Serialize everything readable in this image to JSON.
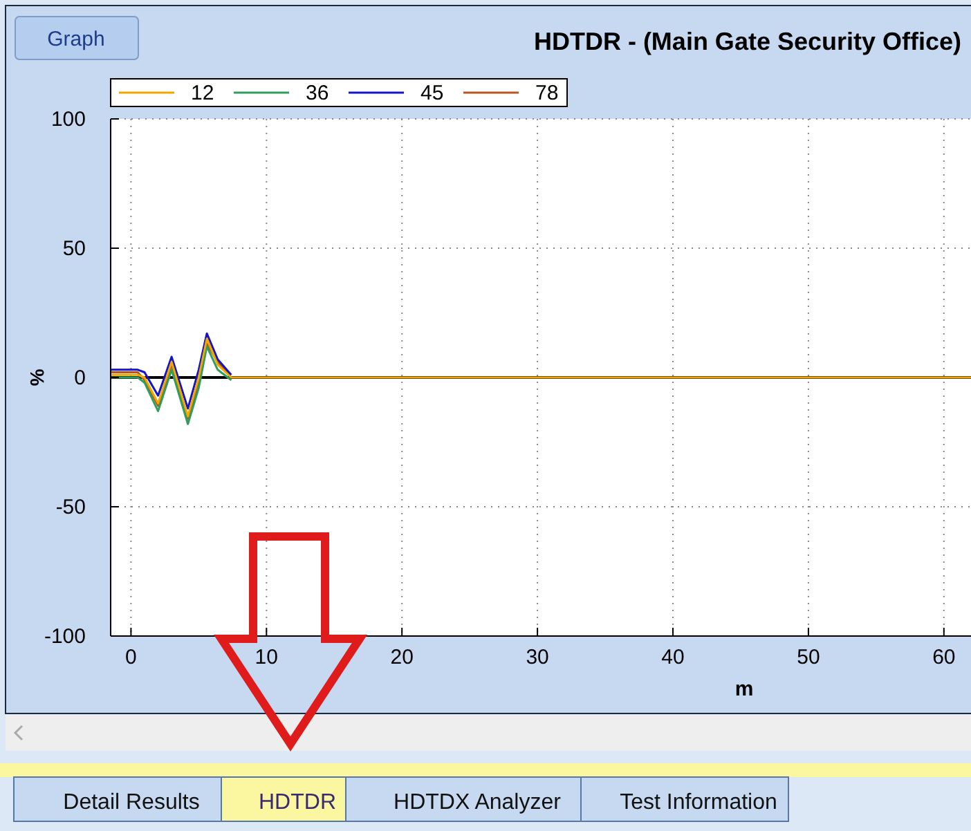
{
  "chart_data": {
    "type": "line",
    "title": "HDTDR - (Main Gate Security Office)",
    "xlabel": "m",
    "ylabel": "%",
    "xlim": [
      -1.5,
      62
    ],
    "xticks": [
      0,
      10,
      20,
      30,
      40,
      50,
      60
    ],
    "ylim": [
      -100,
      100
    ],
    "yticks": [
      -100,
      -50,
      0,
      50,
      100
    ],
    "grid": true,
    "legend": "top left",
    "line_style": "solid",
    "marker": "none",
    "ref_lines": [
      {
        "axis": "y",
        "value": 0,
        "color": "#000000"
      }
    ],
    "annotations": [
      "Graph",
      "Detail Results",
      "HDTDR",
      "HDTDX Analyzer",
      "Test Information"
    ],
    "x": [
      -1.5,
      0.5,
      1,
      2,
      3,
      4.2,
      5,
      5.6,
      6.4,
      7.4,
      20,
      30,
      40,
      50,
      62
    ],
    "series": [
      {
        "name": "12",
        "color": "#f0a800",
        "values": [
          1,
          1,
          0,
          -10,
          6,
          -15,
          0,
          15,
          5,
          0,
          0,
          0,
          0,
          0,
          0
        ]
      },
      {
        "name": "36",
        "color": "#2e9e5e",
        "values": [
          0,
          0,
          -2,
          -13,
          3,
          -18,
          -4,
          12,
          3,
          -1,
          null,
          null,
          null,
          null,
          null
        ]
      },
      {
        "name": "45",
        "color": "#1414c8",
        "values": [
          3,
          3,
          2,
          -7,
          8,
          -12,
          3,
          17,
          7,
          1,
          null,
          null,
          null,
          null,
          null
        ]
      },
      {
        "name": "78",
        "color": "#b8561e",
        "values": [
          2,
          2,
          -1,
          -11,
          5,
          -16,
          -2,
          13,
          6,
          0,
          null,
          null,
          null,
          null,
          null
        ]
      }
    ]
  }
}
